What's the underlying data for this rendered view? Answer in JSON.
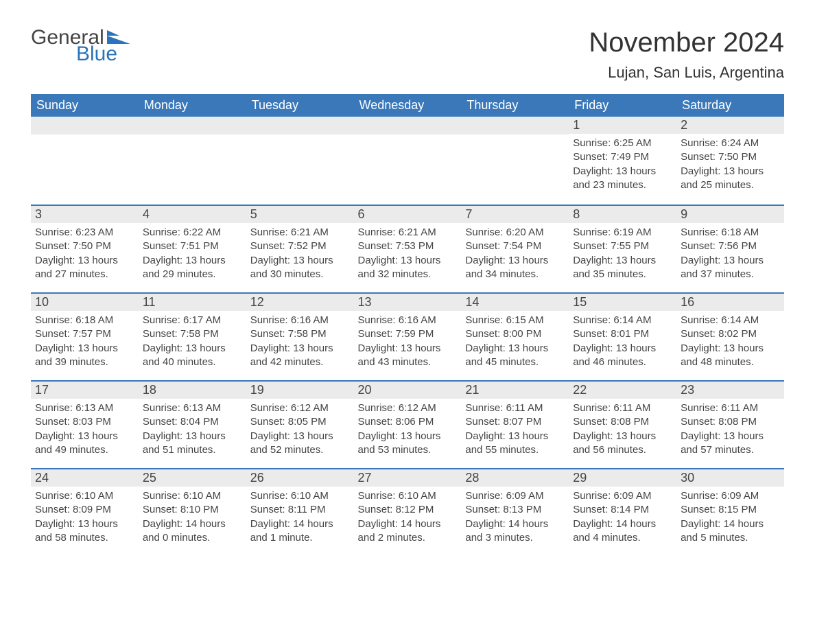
{
  "logo": {
    "general": "General",
    "blue": "Blue",
    "flag_color": "#2a74bb"
  },
  "header": {
    "month_title": "November 2024",
    "location": "Lujan, San Luis, Argentina"
  },
  "colors": {
    "header_bg": "#3a78b9",
    "header_text": "#ffffff",
    "daynum_bg": "#ebebeb",
    "border": "#3a78b9",
    "text": "#444444",
    "background": "#ffffff"
  },
  "day_labels": [
    "Sunday",
    "Monday",
    "Tuesday",
    "Wednesday",
    "Thursday",
    "Friday",
    "Saturday"
  ],
  "weeks": [
    [
      {
        "empty": true
      },
      {
        "empty": true
      },
      {
        "empty": true
      },
      {
        "empty": true
      },
      {
        "empty": true
      },
      {
        "day": "1",
        "sunrise": "Sunrise: 6:25 AM",
        "sunset": "Sunset: 7:49 PM",
        "daylight": "Daylight: 13 hours and 23 minutes."
      },
      {
        "day": "2",
        "sunrise": "Sunrise: 6:24 AM",
        "sunset": "Sunset: 7:50 PM",
        "daylight": "Daylight: 13 hours and 25 minutes."
      }
    ],
    [
      {
        "day": "3",
        "sunrise": "Sunrise: 6:23 AM",
        "sunset": "Sunset: 7:50 PM",
        "daylight": "Daylight: 13 hours and 27 minutes."
      },
      {
        "day": "4",
        "sunrise": "Sunrise: 6:22 AM",
        "sunset": "Sunset: 7:51 PM",
        "daylight": "Daylight: 13 hours and 29 minutes."
      },
      {
        "day": "5",
        "sunrise": "Sunrise: 6:21 AM",
        "sunset": "Sunset: 7:52 PM",
        "daylight": "Daylight: 13 hours and 30 minutes."
      },
      {
        "day": "6",
        "sunrise": "Sunrise: 6:21 AM",
        "sunset": "Sunset: 7:53 PM",
        "daylight": "Daylight: 13 hours and 32 minutes."
      },
      {
        "day": "7",
        "sunrise": "Sunrise: 6:20 AM",
        "sunset": "Sunset: 7:54 PM",
        "daylight": "Daylight: 13 hours and 34 minutes."
      },
      {
        "day": "8",
        "sunrise": "Sunrise: 6:19 AM",
        "sunset": "Sunset: 7:55 PM",
        "daylight": "Daylight: 13 hours and 35 minutes."
      },
      {
        "day": "9",
        "sunrise": "Sunrise: 6:18 AM",
        "sunset": "Sunset: 7:56 PM",
        "daylight": "Daylight: 13 hours and 37 minutes."
      }
    ],
    [
      {
        "day": "10",
        "sunrise": "Sunrise: 6:18 AM",
        "sunset": "Sunset: 7:57 PM",
        "daylight": "Daylight: 13 hours and 39 minutes."
      },
      {
        "day": "11",
        "sunrise": "Sunrise: 6:17 AM",
        "sunset": "Sunset: 7:58 PM",
        "daylight": "Daylight: 13 hours and 40 minutes."
      },
      {
        "day": "12",
        "sunrise": "Sunrise: 6:16 AM",
        "sunset": "Sunset: 7:58 PM",
        "daylight": "Daylight: 13 hours and 42 minutes."
      },
      {
        "day": "13",
        "sunrise": "Sunrise: 6:16 AM",
        "sunset": "Sunset: 7:59 PM",
        "daylight": "Daylight: 13 hours and 43 minutes."
      },
      {
        "day": "14",
        "sunrise": "Sunrise: 6:15 AM",
        "sunset": "Sunset: 8:00 PM",
        "daylight": "Daylight: 13 hours and 45 minutes."
      },
      {
        "day": "15",
        "sunrise": "Sunrise: 6:14 AM",
        "sunset": "Sunset: 8:01 PM",
        "daylight": "Daylight: 13 hours and 46 minutes."
      },
      {
        "day": "16",
        "sunrise": "Sunrise: 6:14 AM",
        "sunset": "Sunset: 8:02 PM",
        "daylight": "Daylight: 13 hours and 48 minutes."
      }
    ],
    [
      {
        "day": "17",
        "sunrise": "Sunrise: 6:13 AM",
        "sunset": "Sunset: 8:03 PM",
        "daylight": "Daylight: 13 hours and 49 minutes."
      },
      {
        "day": "18",
        "sunrise": "Sunrise: 6:13 AM",
        "sunset": "Sunset: 8:04 PM",
        "daylight": "Daylight: 13 hours and 51 minutes."
      },
      {
        "day": "19",
        "sunrise": "Sunrise: 6:12 AM",
        "sunset": "Sunset: 8:05 PM",
        "daylight": "Daylight: 13 hours and 52 minutes."
      },
      {
        "day": "20",
        "sunrise": "Sunrise: 6:12 AM",
        "sunset": "Sunset: 8:06 PM",
        "daylight": "Daylight: 13 hours and 53 minutes."
      },
      {
        "day": "21",
        "sunrise": "Sunrise: 6:11 AM",
        "sunset": "Sunset: 8:07 PM",
        "daylight": "Daylight: 13 hours and 55 minutes."
      },
      {
        "day": "22",
        "sunrise": "Sunrise: 6:11 AM",
        "sunset": "Sunset: 8:08 PM",
        "daylight": "Daylight: 13 hours and 56 minutes."
      },
      {
        "day": "23",
        "sunrise": "Sunrise: 6:11 AM",
        "sunset": "Sunset: 8:08 PM",
        "daylight": "Daylight: 13 hours and 57 minutes."
      }
    ],
    [
      {
        "day": "24",
        "sunrise": "Sunrise: 6:10 AM",
        "sunset": "Sunset: 8:09 PM",
        "daylight": "Daylight: 13 hours and 58 minutes."
      },
      {
        "day": "25",
        "sunrise": "Sunrise: 6:10 AM",
        "sunset": "Sunset: 8:10 PM",
        "daylight": "Daylight: 14 hours and 0 minutes."
      },
      {
        "day": "26",
        "sunrise": "Sunrise: 6:10 AM",
        "sunset": "Sunset: 8:11 PM",
        "daylight": "Daylight: 14 hours and 1 minute."
      },
      {
        "day": "27",
        "sunrise": "Sunrise: 6:10 AM",
        "sunset": "Sunset: 8:12 PM",
        "daylight": "Daylight: 14 hours and 2 minutes."
      },
      {
        "day": "28",
        "sunrise": "Sunrise: 6:09 AM",
        "sunset": "Sunset: 8:13 PM",
        "daylight": "Daylight: 14 hours and 3 minutes."
      },
      {
        "day": "29",
        "sunrise": "Sunrise: 6:09 AM",
        "sunset": "Sunset: 8:14 PM",
        "daylight": "Daylight: 14 hours and 4 minutes."
      },
      {
        "day": "30",
        "sunrise": "Sunrise: 6:09 AM",
        "sunset": "Sunset: 8:15 PM",
        "daylight": "Daylight: 14 hours and 5 minutes."
      }
    ]
  ]
}
